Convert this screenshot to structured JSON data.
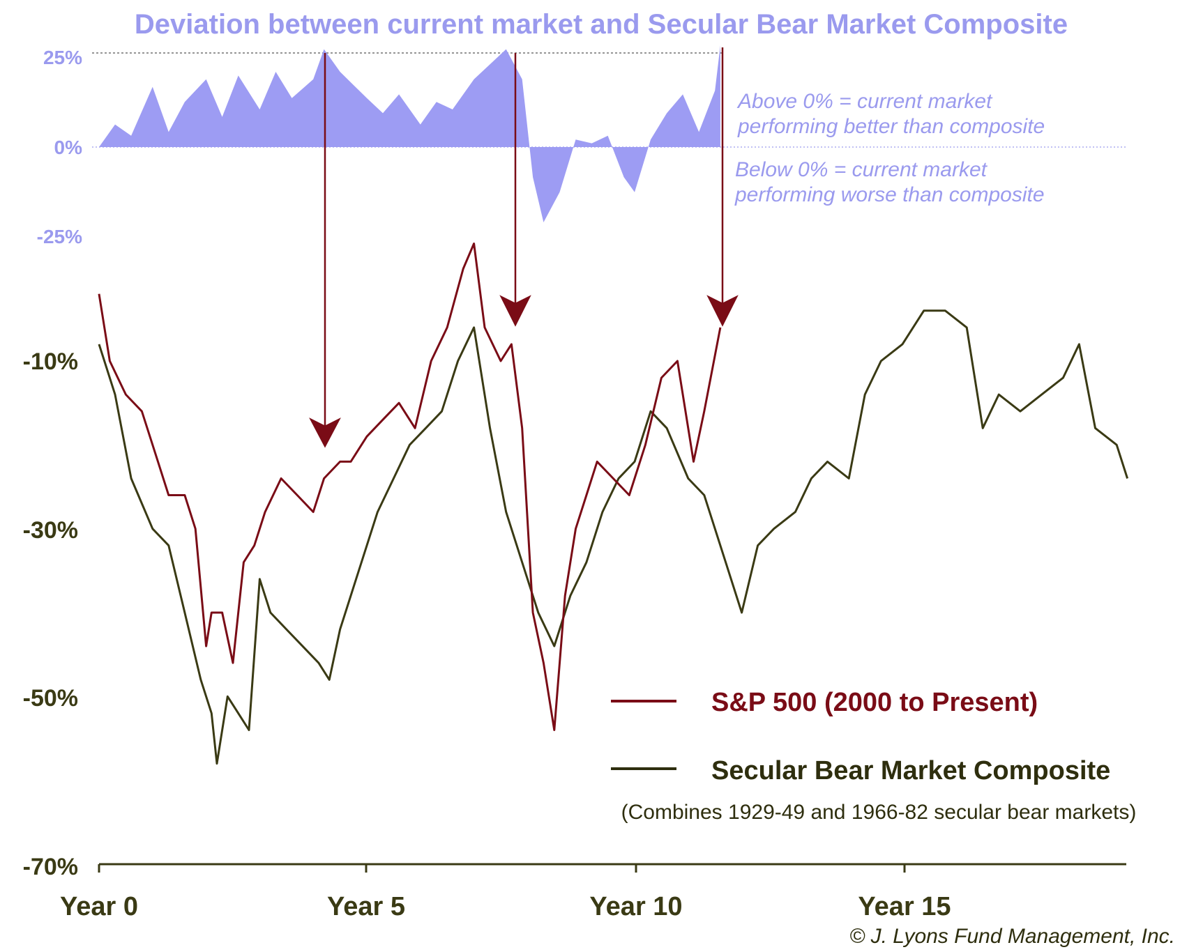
{
  "chart_data": [
    {
      "type": "area",
      "title": "Deviation between current market and Secular Bear Market Composite",
      "y_ticks": [
        "25%",
        "0%",
        "-25%"
      ],
      "ylim": [
        -25,
        25
      ],
      "reference_line": 25,
      "annotations": {
        "above": [
          "Above 0% = current market",
          "performing better than composite"
        ],
        "below": [
          "Below 0% = current market",
          "performing worse than composite"
        ]
      },
      "color": "#9d9cf3",
      "series": [
        {
          "x": [
            0,
            0.3,
            0.6,
            1,
            1.3,
            1.6,
            2,
            2.3,
            2.6,
            3,
            3.3,
            3.6,
            4,
            4.2,
            4.5,
            5,
            5.3,
            5.6,
            6,
            6.3,
            6.6,
            7,
            7.3,
            7.6,
            7.9,
            8.1,
            8.3,
            8.6,
            8.9,
            9.2,
            9.5,
            9.8,
            10,
            10.3,
            10.6,
            10.9,
            11.2,
            11.5,
            11.6
          ],
          "values": [
            0,
            6,
            3,
            16,
            4,
            12,
            18,
            8,
            19,
            10,
            20,
            13,
            18,
            26,
            20,
            13,
            9,
            14,
            6,
            12,
            10,
            18,
            22,
            26,
            18,
            -8,
            -20,
            -12,
            2,
            1,
            3,
            -8,
            -12,
            2,
            9,
            14,
            4,
            15,
            27
          ]
        }
      ]
    },
    {
      "type": "line",
      "title": "",
      "xlabel": "",
      "ylabel": "",
      "x_ticks": [
        "Year 0",
        "Year 5",
        "Year 10",
        "Year 15"
      ],
      "y_ticks": [
        "-10%",
        "-30%",
        "-50%",
        "-70%"
      ],
      "ylim": [
        -70,
        22
      ],
      "xlim": [
        0,
        19.2
      ],
      "legend": {
        "sp": "S&P 500 (2000 to Present)",
        "comp": "Secular Bear Market Composite",
        "note": "(Combines 1929-49 and 1966-82 secular bear markets)",
        "placement": "bottom-right"
      },
      "series": [
        {
          "name": "S&P 500 (2000 to Present)",
          "color": "#7a0c16",
          "x": [
            0,
            0.2,
            0.5,
            0.8,
            1.1,
            1.3,
            1.6,
            1.8,
            2.0,
            2.1,
            2.3,
            2.5,
            2.7,
            2.9,
            3.1,
            3.4,
            3.7,
            4.0,
            4.2,
            4.5,
            4.7,
            5.0,
            5.3,
            5.6,
            5.9,
            6.2,
            6.5,
            6.8,
            7.0,
            7.2,
            7.5,
            7.7,
            7.9,
            8.1,
            8.3,
            8.5,
            8.7,
            8.9,
            9.1,
            9.3,
            9.6,
            9.9,
            10.2,
            10.5,
            10.8,
            11.1,
            11.3,
            11.6
          ],
          "values": [
            -2,
            -10,
            -14,
            -16,
            -22,
            -26,
            -26,
            -30,
            -44,
            -40,
            -40,
            -46,
            -34,
            -32,
            -28,
            -24,
            -26,
            -28,
            -24,
            -22,
            -22,
            -19,
            -17,
            -15,
            -18,
            -10,
            -6,
            1,
            4,
            -6,
            -10,
            -8,
            -18,
            -40,
            -46,
            -54,
            -38,
            -30,
            -26,
            -22,
            -24,
            -26,
            -20,
            -12,
            -10,
            -22,
            -16,
            -6
          ]
        },
        {
          "name": "Secular Bear Market Composite",
          "color": "#3a3a14",
          "x": [
            0,
            0.3,
            0.6,
            1.0,
            1.3,
            1.6,
            1.9,
            2.1,
            2.2,
            2.4,
            2.6,
            2.8,
            3.0,
            3.2,
            3.5,
            3.8,
            4.1,
            4.3,
            4.5,
            4.8,
            5.2,
            5.5,
            5.8,
            6.1,
            6.4,
            6.7,
            7.0,
            7.3,
            7.6,
            7.9,
            8.2,
            8.5,
            8.8,
            9.1,
            9.4,
            9.7,
            10.0,
            10.3,
            10.6,
            11.0,
            11.3,
            11.7,
            12.0,
            12.3,
            12.6,
            13.0,
            13.3,
            13.6,
            14.0,
            14.3,
            14.6,
            15.0,
            15.4,
            15.8,
            16.2,
            16.5,
            16.8,
            17.2,
            17.6,
            18.0,
            18.3,
            18.6,
            19.0,
            19.2
          ],
          "values": [
            -8,
            -14,
            -24,
            -30,
            -32,
            -40,
            -48,
            -52,
            -58,
            -50,
            -52,
            -54,
            -36,
            -40,
            -42,
            -44,
            -46,
            -48,
            -42,
            -36,
            -28,
            -24,
            -20,
            -18,
            -16,
            -10,
            -6,
            -18,
            -28,
            -34,
            -40,
            -44,
            -38,
            -34,
            -28,
            -24,
            -22,
            -16,
            -18,
            -24,
            -26,
            -34,
            -40,
            -32,
            -30,
            -28,
            -24,
            -22,
            -24,
            -14,
            -10,
            -8,
            -4,
            -4,
            -6,
            -18,
            -14,
            -16,
            -14,
            -12,
            -8,
            -18,
            -20,
            -24
          ]
        }
      ]
    }
  ],
  "credit": "© J. Lyons Fund Management, Inc."
}
